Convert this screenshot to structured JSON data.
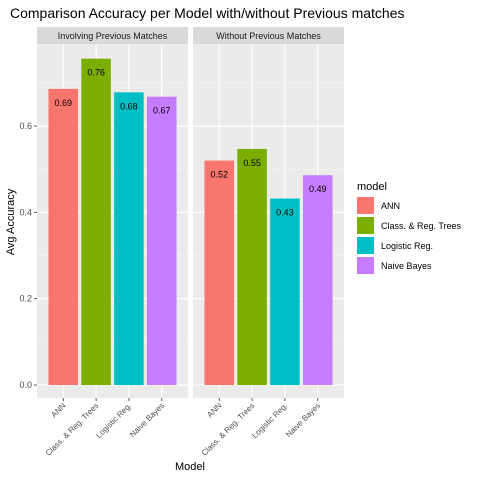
{
  "chart_data": {
    "type": "bar",
    "title": "Comparison Accuracy per Model with/without Previous matches",
    "xlabel": "Model",
    "ylabel": "Avg Accuracy",
    "ylim": [
      -0.03,
      0.79
    ],
    "yticks": [
      "0.0",
      "0.2",
      "0.4",
      "0.6"
    ],
    "yticks_values": [
      0.0,
      0.2,
      0.4,
      0.6
    ],
    "categories": [
      "ANN",
      "Class. & Reg. Trees",
      "Logistic Reg.",
      "Naive Bayes"
    ],
    "category_tick_labels": [
      "ANN",
      "Class. & Reg. Trees",
      "Logistic Reg.",
      "Naive Bayes"
    ],
    "colors": [
      "#F8766D",
      "#7CAE00",
      "#00BFC4",
      "#C77CFF"
    ],
    "panel_background": "#EBEBEB",
    "strip_background": "#D9D9D9",
    "grid": true,
    "legend": {
      "title": "model",
      "position": "right",
      "entries": [
        "ANN",
        "Class. & Reg. Trees",
        "Logistic Reg.",
        "Naive Bayes"
      ]
    },
    "facets": [
      {
        "name": "Involving Previous Matches",
        "values": [
          0.686,
          0.756,
          0.678,
          0.668
        ],
        "labels": [
          "0.69",
          "0.76",
          "0.68",
          "0.67"
        ]
      },
      {
        "name": "Without Previous Matches",
        "values": [
          0.52,
          0.547,
          0.432,
          0.486
        ],
        "labels": [
          "0.52",
          "0.55",
          "0.43",
          "0.49"
        ]
      }
    ]
  }
}
